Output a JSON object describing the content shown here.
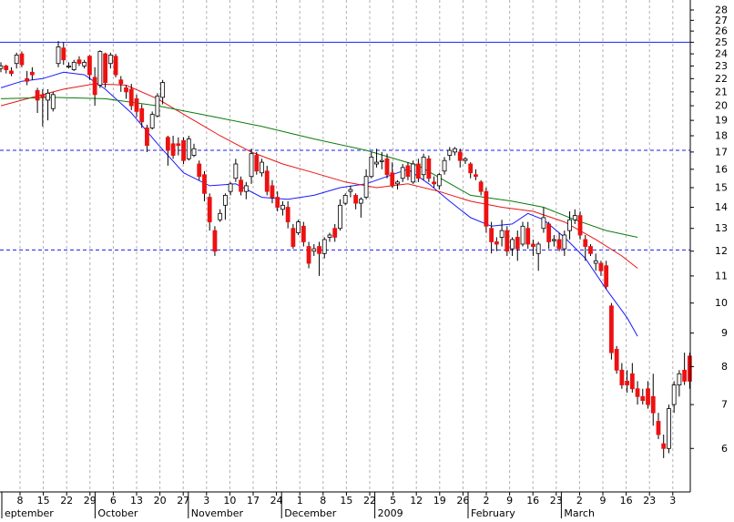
{
  "chart_data": {
    "type": "candlestick",
    "y_scale": "log",
    "ylim": [
      5.15,
      29.0
    ],
    "y_ticks": [
      6,
      7,
      8,
      9,
      10,
      11,
      12,
      13,
      14,
      15,
      16,
      17,
      18,
      19,
      20,
      21,
      22,
      23,
      24,
      25,
      26,
      27,
      28
    ],
    "x_tick_labels": [
      "8",
      "15",
      "22",
      "29",
      "6",
      "13",
      "20",
      "27",
      "3",
      "10",
      "17",
      "24",
      "1",
      "8",
      "15",
      "22",
      "5",
      "12",
      "19",
      "26",
      "2",
      "9",
      "16",
      "23",
      "2",
      "9",
      "16",
      "23",
      "3"
    ],
    "month_labels": [
      {
        "label": "eptember",
        "at_tick": 0
      },
      {
        "label": "October",
        "at_tick": 4
      },
      {
        "label": "November",
        "at_tick": 8
      },
      {
        "label": "December",
        "at_tick": 12
      },
      {
        "label": "2009",
        "at_tick": 16
      },
      {
        "label": "February",
        "at_tick": 20
      },
      {
        "label": "March",
        "at_tick": 24
      }
    ],
    "horizontal_lines": [
      {
        "value": 25.0,
        "style": "solid",
        "color": "#1a1aff"
      },
      {
        "value": 17.1,
        "style": "dashed",
        "color": "#1a1aff"
      },
      {
        "value": 12.05,
        "style": "dashed",
        "color": "#1a1aff"
      }
    ],
    "grid": {
      "vertical": true,
      "horizontal": false
    },
    "colors": {
      "up": "#ffffff",
      "down": "#ee1111",
      "ma_short": "#1a1aff",
      "ma_mid": "#e81414",
      "ma_long": "#0a7a0a",
      "grid": "#b0b0b0",
      "frame": "#000000"
    },
    "moving_averages": [
      {
        "color_key": "ma_short",
        "points": [
          [
            0,
            21.3
          ],
          [
            4,
            21.8
          ],
          [
            8,
            22.0
          ],
          [
            12,
            22.5
          ],
          [
            16,
            22.3
          ],
          [
            20,
            21.2
          ],
          [
            25,
            19.5
          ],
          [
            30,
            17.5
          ],
          [
            35,
            15.8
          ],
          [
            40,
            15.1
          ],
          [
            45,
            15.2
          ],
          [
            50,
            14.5
          ],
          [
            55,
            14.4
          ],
          [
            60,
            14.6
          ],
          [
            65,
            15.0
          ],
          [
            70,
            15.2
          ],
          [
            75,
            15.7
          ],
          [
            78,
            16.0
          ],
          [
            82,
            15.2
          ],
          [
            86,
            14.3
          ],
          [
            90,
            13.5
          ],
          [
            94,
            13.1
          ],
          [
            98,
            13.2
          ],
          [
            101,
            13.7
          ],
          [
            104,
            13.4
          ],
          [
            108,
            12.6
          ],
          [
            112,
            11.7
          ],
          [
            116,
            10.5
          ],
          [
            120,
            9.5
          ],
          [
            122,
            8.9
          ]
        ]
      },
      {
        "color_key": "ma_mid",
        "points": [
          [
            0,
            20.0
          ],
          [
            6,
            20.6
          ],
          [
            12,
            21.2
          ],
          [
            18,
            21.6
          ],
          [
            24,
            21.5
          ],
          [
            30,
            20.5
          ],
          [
            36,
            19.2
          ],
          [
            42,
            18.0
          ],
          [
            48,
            17.0
          ],
          [
            54,
            16.3
          ],
          [
            60,
            15.8
          ],
          [
            66,
            15.3
          ],
          [
            72,
            15.0
          ],
          [
            78,
            15.2
          ],
          [
            84,
            14.8
          ],
          [
            90,
            14.3
          ],
          [
            96,
            14.0
          ],
          [
            102,
            13.8
          ],
          [
            108,
            13.3
          ],
          [
            114,
            12.5
          ],
          [
            119,
            11.8
          ],
          [
            122,
            11.3
          ]
        ]
      },
      {
        "color_key": "ma_long",
        "points": [
          [
            0,
            20.5
          ],
          [
            10,
            20.6
          ],
          [
            20,
            20.5
          ],
          [
            30,
            20.0
          ],
          [
            40,
            19.3
          ],
          [
            50,
            18.6
          ],
          [
            60,
            17.8
          ],
          [
            70,
            17.1
          ],
          [
            80,
            16.2
          ],
          [
            90,
            14.6
          ],
          [
            98,
            14.3
          ],
          [
            104,
            14.0
          ],
          [
            110,
            13.4
          ],
          [
            116,
            12.9
          ],
          [
            122,
            12.6
          ]
        ]
      }
    ],
    "candles": [
      [
        22.8,
        23.3,
        22.5,
        23.0
      ],
      [
        23.0,
        23.1,
        22.4,
        22.7
      ],
      [
        22.6,
        22.9,
        22.2,
        22.4
      ],
      [
        23.2,
        24.1,
        22.8,
        23.9
      ],
      [
        24.0,
        24.2,
        22.9,
        23.1
      ],
      [
        22.0,
        22.6,
        21.5,
        21.8
      ],
      [
        22.5,
        22.9,
        21.9,
        22.3
      ],
      [
        21.1,
        21.3,
        19.5,
        20.4
      ],
      [
        20.8,
        21.2,
        18.6,
        20.6
      ],
      [
        20.4,
        21.2,
        19.0,
        20.9
      ],
      [
        19.8,
        21.0,
        19.6,
        20.8
      ],
      [
        23.2,
        25.1,
        22.9,
        24.6
      ],
      [
        24.5,
        25.0,
        23.1,
        23.5
      ],
      [
        23.0,
        23.3,
        22.8,
        23.0
      ],
      [
        22.7,
        23.5,
        22.6,
        23.3
      ],
      [
        23.5,
        23.8,
        23.0,
        23.2
      ],
      [
        23.0,
        23.5,
        22.8,
        23.3
      ],
      [
        23.8,
        23.9,
        21.9,
        22.3
      ],
      [
        22.1,
        22.9,
        20.0,
        20.8
      ],
      [
        21.5,
        24.3,
        21.3,
        24.2
      ],
      [
        24.0,
        24.1,
        21.3,
        21.7
      ],
      [
        23.2,
        24.1,
        22.8,
        23.9
      ],
      [
        23.8,
        24.0,
        22.1,
        22.3
      ],
      [
        21.9,
        22.2,
        21.0,
        21.6
      ],
      [
        21.3,
        21.5,
        20.5,
        21.0
      ],
      [
        21.2,
        21.6,
        19.7,
        20.0
      ],
      [
        20.5,
        20.8,
        19.2,
        19.6
      ],
      [
        19.8,
        20.1,
        18.5,
        18.9
      ],
      [
        18.5,
        18.7,
        17.0,
        17.4
      ],
      [
        18.5,
        19.6,
        18.4,
        19.4
      ],
      [
        19.3,
        20.9,
        19.2,
        20.7
      ],
      [
        20.6,
        21.9,
        20.1,
        21.7
      ],
      [
        17.9,
        18.0,
        16.2,
        17.1
      ],
      [
        17.5,
        18.0,
        16.6,
        16.8
      ],
      [
        17.5,
        17.9,
        16.8,
        17.4
      ],
      [
        17.7,
        17.9,
        16.3,
        16.5
      ],
      [
        16.6,
        18.0,
        16.5,
        17.8
      ],
      [
        16.8,
        17.5,
        16.7,
        17.2
      ],
      [
        16.3,
        16.5,
        15.4,
        15.6
      ],
      [
        15.7,
        15.9,
        14.3,
        14.7
      ],
      [
        14.5,
        14.7,
        12.9,
        13.3
      ],
      [
        12.9,
        13.1,
        11.8,
        12.0
      ],
      [
        13.4,
        13.9,
        13.3,
        13.7
      ],
      [
        14.1,
        14.7,
        13.4,
        14.6
      ],
      [
        14.8,
        15.3,
        14.6,
        15.2
      ],
      [
        15.5,
        16.6,
        15.3,
        16.3
      ],
      [
        15.4,
        15.6,
        14.6,
        14.8
      ],
      [
        14.8,
        15.3,
        14.4,
        15.1
      ],
      [
        15.6,
        17.2,
        15.2,
        16.9
      ],
      [
        16.8,
        17.0,
        15.7,
        15.9
      ],
      [
        15.8,
        16.6,
        15.6,
        16.4
      ],
      [
        15.9,
        16.2,
        14.6,
        14.8
      ],
      [
        15.1,
        15.4,
        14.2,
        14.5
      ],
      [
        14.5,
        14.8,
        13.8,
        14.0
      ],
      [
        13.9,
        14.3,
        13.6,
        14.1
      ],
      [
        14.0,
        14.3,
        13.0,
        13.3
      ],
      [
        13.0,
        13.2,
        12.1,
        12.2
      ],
      [
        12.8,
        13.4,
        12.7,
        13.3
      ],
      [
        13.1,
        13.3,
        12.2,
        12.4
      ],
      [
        12.2,
        12.4,
        11.3,
        11.5
      ],
      [
        12.0,
        12.3,
        11.8,
        12.1
      ],
      [
        12.2,
        12.4,
        11.0,
        11.9
      ],
      [
        11.9,
        12.6,
        11.7,
        12.5
      ],
      [
        12.6,
        12.8,
        12.4,
        12.7
      ],
      [
        13.0,
        13.2,
        12.4,
        12.6
      ],
      [
        13.0,
        14.4,
        12.9,
        14.1
      ],
      [
        14.2,
        14.7,
        14.1,
        14.6
      ],
      [
        14.8,
        15.1,
        14.5,
        14.9
      ],
      [
        14.6,
        14.7,
        13.9,
        14.2
      ],
      [
        14.2,
        14.5,
        13.5,
        14.4
      ],
      [
        14.5,
        16.0,
        14.4,
        15.6
      ],
      [
        15.6,
        17.0,
        15.5,
        16.7
      ],
      [
        16.3,
        17.2,
        16.1,
        16.4
      ],
      [
        16.5,
        17.0,
        16.0,
        16.5
      ],
      [
        16.6,
        16.9,
        15.5,
        15.7
      ],
      [
        15.8,
        16.4,
        15.0,
        15.1
      ],
      [
        15.2,
        15.4,
        14.9,
        15.3
      ],
      [
        15.5,
        16.3,
        15.3,
        16.1
      ],
      [
        16.2,
        16.4,
        15.4,
        15.6
      ],
      [
        15.3,
        16.5,
        15.2,
        16.3
      ],
      [
        16.3,
        16.6,
        15.3,
        15.5
      ],
      [
        15.7,
        16.9,
        15.4,
        16.7
      ],
      [
        16.6,
        16.8,
        15.3,
        15.5
      ],
      [
        15.3,
        15.6,
        15.0,
        15.2
      ],
      [
        15.1,
        15.8,
        14.9,
        15.7
      ],
      [
        15.9,
        16.7,
        15.7,
        16.5
      ],
      [
        16.8,
        17.3,
        16.5,
        17.1
      ],
      [
        17.0,
        17.3,
        16.8,
        17.2
      ],
      [
        17.0,
        17.2,
        16.1,
        16.5
      ],
      [
        16.5,
        16.7,
        16.3,
        16.6
      ],
      [
        16.3,
        16.4,
        15.5,
        15.8
      ],
      [
        15.7,
        16.0,
        15.4,
        15.6
      ],
      [
        15.3,
        15.4,
        14.6,
        14.8
      ],
      [
        14.8,
        15.0,
        12.8,
        13.1
      ],
      [
        13.0,
        13.3,
        11.9,
        12.4
      ],
      [
        12.4,
        12.6,
        12.0,
        12.3
      ],
      [
        12.6,
        13.4,
        12.2,
        12.9
      ],
      [
        12.9,
        13.1,
        11.8,
        12.0
      ],
      [
        12.1,
        12.6,
        11.8,
        12.5
      ],
      [
        12.6,
        12.9,
        11.6,
        12.1
      ],
      [
        12.3,
        13.3,
        12.2,
        13.1
      ],
      [
        13.0,
        13.3,
        12.1,
        12.3
      ],
      [
        12.3,
        12.5,
        11.8,
        12.2
      ],
      [
        11.9,
        12.4,
        11.2,
        12.3
      ],
      [
        13.0,
        14.0,
        12.8,
        13.5
      ],
      [
        13.2,
        13.3,
        12.1,
        12.4
      ],
      [
        12.5,
        12.7,
        12.2,
        12.5
      ],
      [
        12.5,
        12.8,
        12.0,
        12.1
      ],
      [
        12.1,
        12.9,
        11.8,
        12.7
      ],
      [
        12.9,
        13.8,
        12.5,
        13.4
      ],
      [
        13.4,
        13.9,
        13.2,
        13.6
      ],
      [
        13.6,
        13.8,
        12.5,
        12.7
      ],
      [
        12.5,
        12.7,
        11.6,
        12.2
      ],
      [
        12.2,
        12.3,
        11.8,
        11.9
      ],
      [
        11.5,
        11.9,
        11.2,
        11.6
      ],
      [
        11.5,
        11.6,
        11.0,
        11.2
      ],
      [
        11.4,
        11.6,
        10.5,
        10.6
      ],
      [
        9.9,
        10.0,
        8.2,
        8.4
      ],
      [
        8.5,
        8.6,
        7.8,
        7.9
      ],
      [
        7.9,
        8.1,
        7.4,
        7.5
      ],
      [
        7.6,
        7.9,
        7.3,
        7.5
      ],
      [
        7.8,
        8.1,
        7.3,
        7.4
      ],
      [
        7.4,
        7.6,
        7.0,
        7.2
      ],
      [
        7.2,
        7.4,
        7.0,
        7.1
      ],
      [
        7.4,
        7.6,
        6.9,
        7.0
      ],
      [
        7.2,
        7.8,
        6.5,
        6.8
      ],
      [
        6.6,
        6.8,
        6.2,
        6.3
      ],
      [
        6.1,
        6.3,
        5.8,
        6.0
      ],
      [
        6.0,
        7.0,
        5.9,
        6.9
      ],
      [
        7.0,
        7.6,
        6.8,
        7.5
      ],
      [
        7.5,
        7.9,
        7.2,
        7.8
      ],
      [
        7.9,
        8.4,
        7.5,
        7.6
      ],
      [
        8.3,
        8.4,
        7.4,
        7.6
      ]
    ]
  }
}
